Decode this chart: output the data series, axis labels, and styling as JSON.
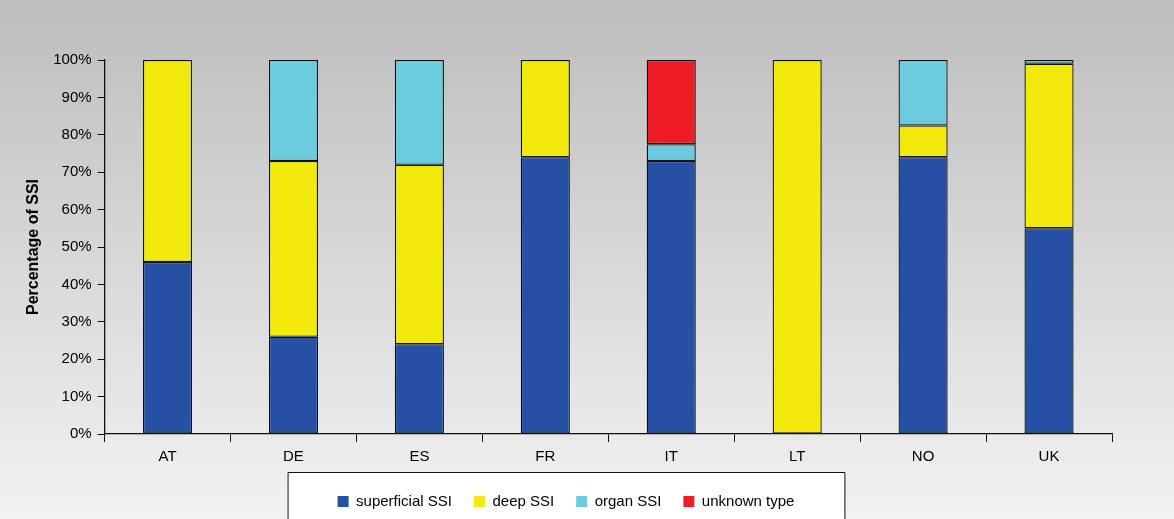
{
  "chart_data": {
    "type": "bar",
    "stacked": true,
    "ylabel": "Percentage of SSI",
    "categories": [
      "AT",
      "DE",
      "ES",
      "FR",
      "IT",
      "LT",
      "NO",
      "UK"
    ],
    "series": [
      {
        "name": "superficial SSI",
        "color": "#2550a4",
        "values": [
          46,
          26,
          24,
          74,
          73,
          null,
          74,
          55
        ]
      },
      {
        "name": "deep SSI",
        "color": "#f2ea0c",
        "values": [
          54,
          47,
          48,
          26,
          null,
          100,
          8.5,
          44
        ]
      },
      {
        "name": "organ SSI",
        "color": "#6ccbdc",
        "values": [
          null,
          27,
          28,
          null,
          4.5,
          null,
          17.5,
          1
        ]
      },
      {
        "name": "unknown type",
        "color": "#ee1c25",
        "values": [
          null,
          null,
          null,
          null,
          22.5,
          null,
          null,
          null
        ]
      }
    ],
    "ylim": [
      0,
      100
    ],
    "yticks": [
      {
        "value": 0,
        "label": "0%"
      },
      {
        "value": 10,
        "label": "10%"
      },
      {
        "value": 20,
        "label": "20%"
      },
      {
        "value": 30,
        "label": "30%"
      },
      {
        "value": 40,
        "label": "40%"
      },
      {
        "value": 50,
        "label": "50%"
      },
      {
        "value": 60,
        "label": "60%"
      },
      {
        "value": 70,
        "label": "70%"
      },
      {
        "value": 80,
        "label": "80%"
      },
      {
        "value": 90,
        "label": "90%"
      },
      {
        "value": 100,
        "label": "100%"
      }
    ],
    "grid": false,
    "legend": "bottom"
  }
}
